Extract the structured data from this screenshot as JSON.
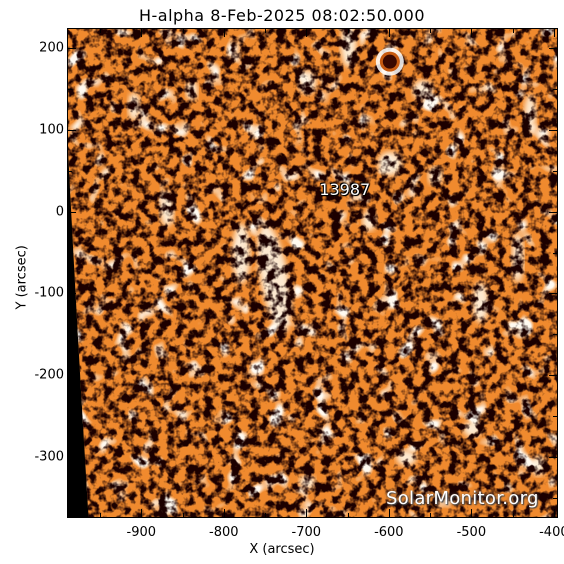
{
  "title": "H-alpha   8-Feb-2025  08:02:50.000",
  "x_axis": {
    "label": "X (arcsec)",
    "ticks": [
      "-900",
      "-800",
      "-700",
      "-600",
      "-500",
      "-400"
    ],
    "range": [
      -990,
      -395
    ]
  },
  "y_axis": {
    "label": "Y (arcsec)",
    "ticks": [
      "200",
      "100",
      "0",
      "-100",
      "-200",
      "-300"
    ],
    "range": [
      -375,
      225
    ]
  },
  "active_region": {
    "label": "13987",
    "x": -660,
    "y": 27
  },
  "sunspot": {
    "x": -600,
    "y": 185
  },
  "limb": {
    "x_at_bottom": -965,
    "x_at_top": -997
  },
  "watermark": "SolarMonitor.org",
  "colors": {
    "background": "#000000",
    "surface": "#f08a2e",
    "surface_dark": "#c85a10",
    "plage": "#fff4e2",
    "sunspot": "#3a0800"
  }
}
